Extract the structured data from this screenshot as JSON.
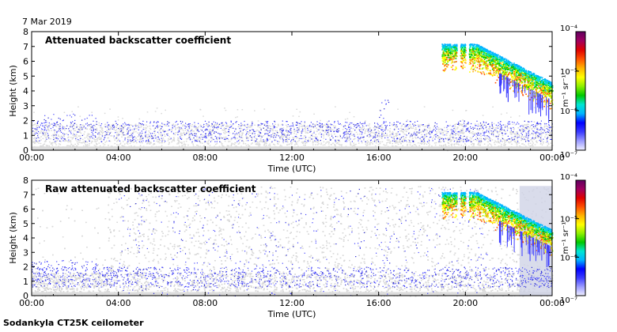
{
  "date": "7 Mar 2019",
  "footer": "Sodankyla CT25K ceilometer",
  "colormap": [
    "#f0f0ff",
    "#9c9cff",
    "#3b3bff",
    "#0000ff",
    "#00b4ff",
    "#00e6d2",
    "#00c800",
    "#8cf000",
    "#ffff00",
    "#ffb400",
    "#ff5000",
    "#e00000",
    "#a00060",
    "#600060"
  ],
  "colorbar": {
    "label": "m⁻¹ sr⁻¹",
    "ticks": [
      "10⁻⁴",
      "10⁻⁵",
      "10⁻⁶",
      "10⁻⁷"
    ]
  },
  "chart_data": [
    {
      "type": "heatmap",
      "title": "Attenuated backscatter coefficient",
      "xlabel": "Time (UTC)",
      "ylabel": "Height (km)",
      "xticks": [
        "00:00",
        "04:00",
        "08:00",
        "12:00",
        "16:00",
        "20:00",
        "00:00"
      ],
      "yticks": [
        "0",
        "1",
        "2",
        "3",
        "4",
        "5",
        "6",
        "7",
        "8"
      ],
      "xlim_hours": [
        0,
        24
      ],
      "ylim_km": [
        0,
        8
      ],
      "colorbar_range": [
        1e-07,
        0.0001
      ],
      "colorbar_scale": "log"
    },
    {
      "type": "heatmap",
      "title": "Raw attenuated backscatter coefficient",
      "xlabel": "Time (UTC)",
      "ylabel": "Height (km)",
      "xticks": [
        "00:00",
        "04:00",
        "08:00",
        "12:00",
        "16:00",
        "20:00",
        "00:00"
      ],
      "yticks": [
        "0",
        "1",
        "2",
        "3",
        "4",
        "5",
        "6",
        "7",
        "8"
      ],
      "xlim_hours": [
        0,
        24
      ],
      "ylim_km": [
        0,
        8
      ],
      "colorbar_range": [
        1e-07,
        0.0001
      ],
      "colorbar_scale": "log"
    }
  ]
}
